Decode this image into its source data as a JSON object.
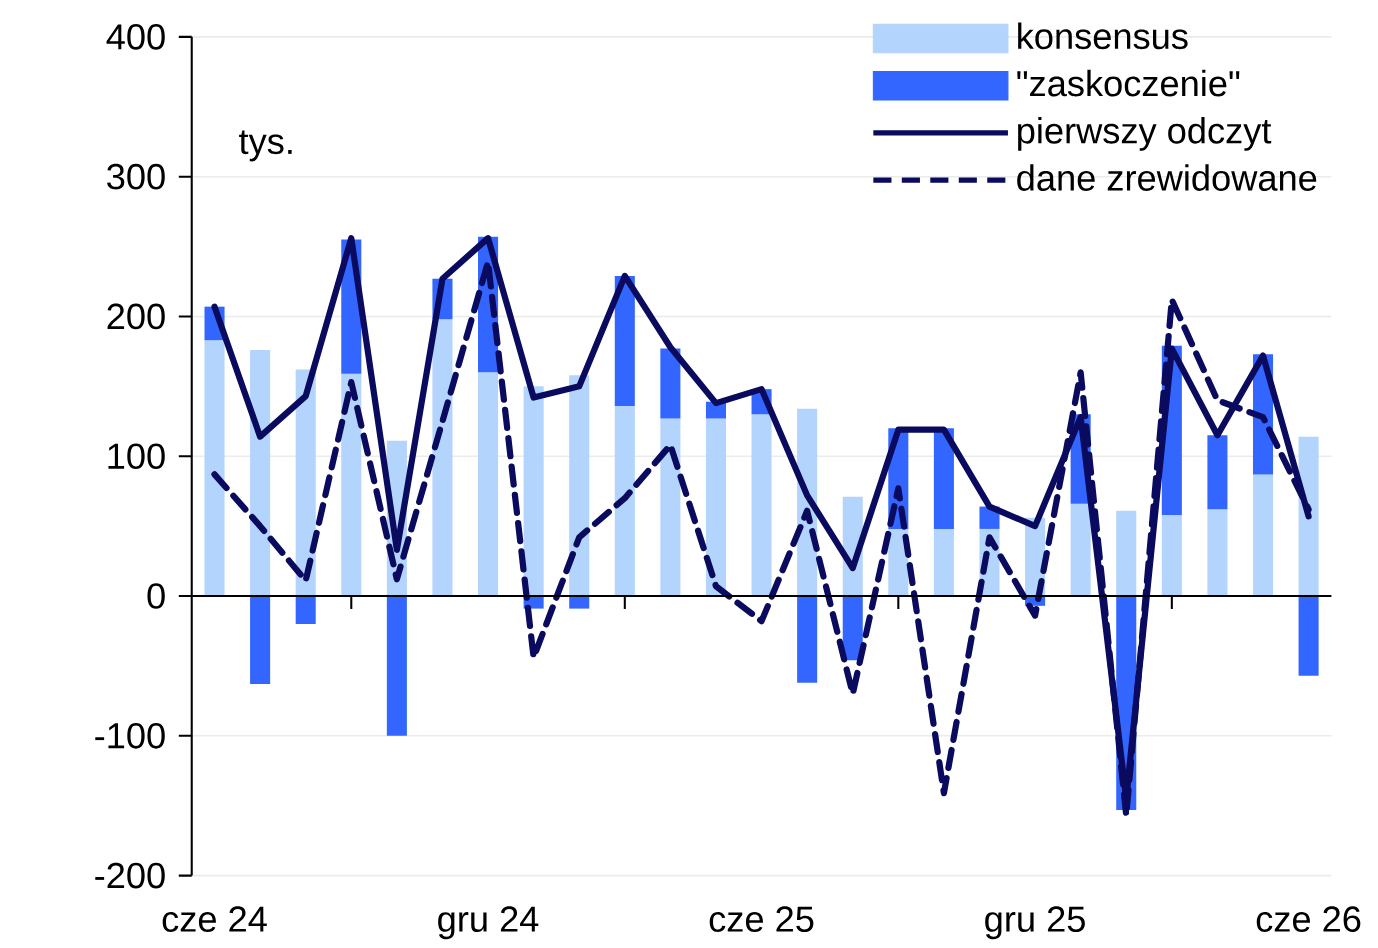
{
  "chart_data": {
    "type": "bar",
    "stacked": true,
    "ylabel": "tys.",
    "categories": [
      "cze 24",
      null,
      null,
      null,
      null,
      null,
      "gru 24",
      null,
      null,
      null,
      null,
      null,
      "cze 25",
      null,
      null,
      null,
      null,
      null,
      "gru 25",
      null,
      null,
      null,
      null,
      null,
      "cze 26"
    ],
    "series": [
      {
        "name": "konsensus",
        "color": "#b3d4fc",
        "values": [
          183,
          176,
          162,
          159,
          111,
          198,
          160,
          150,
          158,
          136,
          127,
          127,
          130,
          134,
          71,
          48,
          48,
          48,
          56,
          66,
          61,
          58,
          62,
          87,
          114
        ]
      },
      {
        "name": "\"zaskoczenie\"",
        "color": "#3366ff",
        "values": [
          24,
          -63,
          -20,
          96,
          -100,
          29,
          97,
          -9,
          -9,
          93,
          50,
          12,
          18,
          -62,
          -46,
          72,
          72,
          16,
          -7,
          64,
          -153,
          121,
          53,
          86,
          -57
        ]
      },
      {
        "name": "pierwszy odczyt",
        "type": "line",
        "color": "#0a0a5e",
        "line_style": "solid",
        "values": [
          207,
          114,
          143,
          256,
          33,
          227,
          256,
          142,
          150,
          229,
          178,
          138,
          148,
          72,
          20,
          119,
          119,
          64,
          50,
          128,
          -145,
          177,
          115,
          172,
          57
        ]
      },
      {
        "name": "dane zrewidowane",
        "type": "line",
        "color": "#0a0a5e",
        "line_style": "dashed",
        "values": [
          87,
          50,
          11,
          153,
          12,
          125,
          239,
          -44,
          42,
          70,
          108,
          7,
          -18,
          61,
          -70,
          77,
          -141,
          42,
          -14,
          160,
          -157,
          212,
          140,
          128,
          62
        ]
      }
    ],
    "ylim": [
      -200,
      400
    ],
    "yticks": [
      -200,
      -100,
      0,
      100,
      200,
      300,
      400
    ],
    "grid": "y",
    "legend": "top right"
  }
}
